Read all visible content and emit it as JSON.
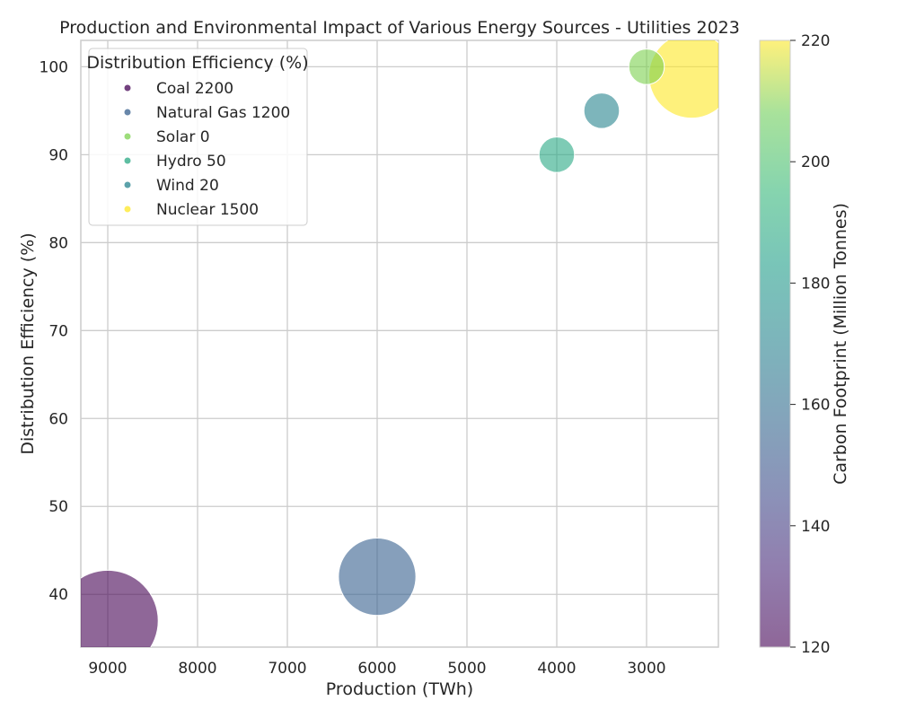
{
  "chart_data": {
    "type": "scatter",
    "title": "Production and Environmental Impact of Various Energy Sources - Utilities 2023",
    "xlabel": "Production (TWh)",
    "ylabel": "Distribution Efficiency (%)",
    "colorbar_label": "Carbon Footprint (Million Tonnes)",
    "xlim": [
      9300,
      2200
    ],
    "ylim": [
      34,
      103
    ],
    "x_inverted": true,
    "x_ticks": [
      9000,
      8000,
      7000,
      6000,
      5000,
      4000,
      3000
    ],
    "y_ticks": [
      40,
      50,
      60,
      70,
      80,
      90,
      100
    ],
    "colorbar_range": [
      120,
      220
    ],
    "colorbar_ticks": [
      120,
      140,
      160,
      180,
      200,
      220
    ],
    "colormap": "viridis",
    "grid": true,
    "legend_title": "Distribution Efficiency (%)",
    "legend_placement": "top-left",
    "points": [
      {
        "label": "Coal 2200",
        "x": 9000,
        "y": 37,
        "carbon": 120,
        "size": 2200
      },
      {
        "label": "Natural Gas 1200",
        "x": 6000,
        "y": 42,
        "carbon": 150,
        "size": 1200
      },
      {
        "label": "Solar 0",
        "x": 3000,
        "y": 100,
        "carbon": 200,
        "size": 0
      },
      {
        "label": "Hydro 50",
        "x": 4000,
        "y": 90,
        "carbon": 180,
        "size": 50
      },
      {
        "label": "Wind 20",
        "x": 3500,
        "y": 95,
        "carbon": 165,
        "size": 20
      },
      {
        "label": "Nuclear 1500",
        "x": 2500,
        "y": 99,
        "carbon": 220,
        "size": 1500
      }
    ]
  }
}
